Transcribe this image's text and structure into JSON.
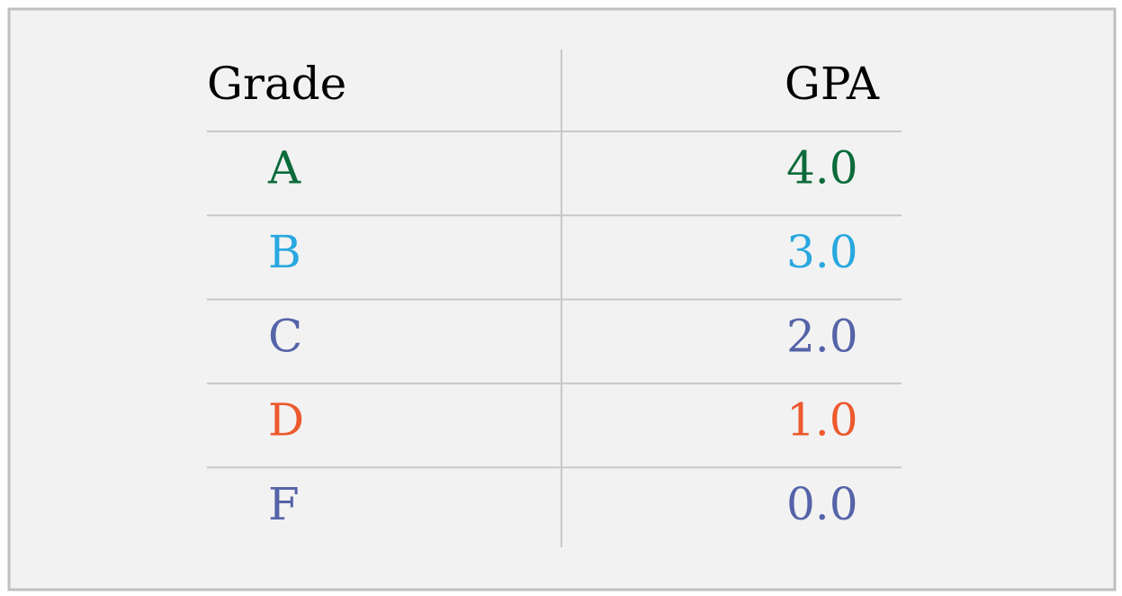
{
  "table": {
    "header": [
      "Grade",
      "GPA"
    ],
    "rows": [
      [
        "A",
        "4.0"
      ],
      [
        "B",
        "3.0"
      ],
      [
        "C",
        "2.0"
      ],
      [
        "D",
        "1.0"
      ],
      [
        "F",
        "0.0"
      ]
    ],
    "row_colors": [
      "#0b6b3a",
      "#29a8df",
      "#5563a8",
      "#ec5a2e",
      "#5563a8"
    ]
  }
}
